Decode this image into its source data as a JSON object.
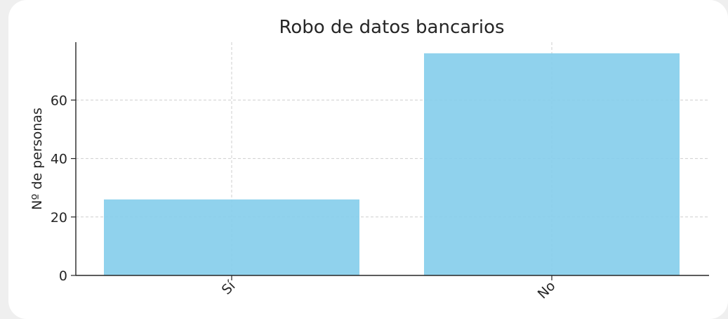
{
  "chart_data": {
    "type": "bar",
    "title": "Robo de datos bancarios",
    "xlabel": "",
    "ylabel": "Nº de personas",
    "categories": [
      "Sí",
      "No"
    ],
    "values": [
      26,
      76
    ],
    "ylim": [
      0,
      80
    ],
    "yticks": [
      0,
      20,
      40,
      60
    ],
    "grid": true,
    "bar_color": "#87ceeb"
  }
}
